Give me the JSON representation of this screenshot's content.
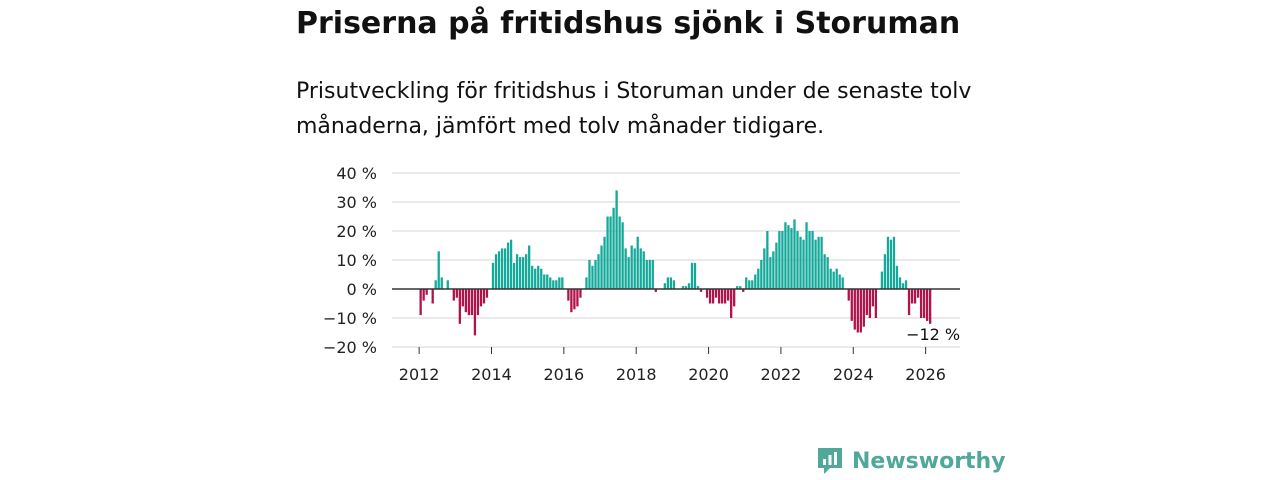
{
  "header": {
    "title": "Priserna på fritidshus sjönk i Storuman",
    "subtitle": "Prisutveckling för fritidshus i Storuman under de senaste tolv månaderna, jämfört med tolv månader tidigare."
  },
  "logo": {
    "text": "Newsworthy",
    "icon": "newsworthy-logo-icon"
  },
  "colors": {
    "positive": "#14a99a",
    "negative": "#b0124a",
    "grid": "#d4d4d4",
    "zero": "#333333"
  },
  "chart_data": {
    "type": "bar",
    "title": "Priserna på fritidshus sjönk i Storuman",
    "xlabel": "",
    "ylabel": "",
    "ylim": [
      -20,
      40
    ],
    "yticks": [
      40,
      30,
      20,
      10,
      0,
      -10,
      -20
    ],
    "ytick_labels": [
      "40 %",
      "30 %",
      "20 %",
      "10 %",
      "0 %",
      "−10 %",
      "−20 %"
    ],
    "xlim": [
      2011.25,
      2026.95
    ],
    "xticks": [
      2012,
      2014,
      2016,
      2018,
      2020,
      2022,
      2024,
      2026
    ],
    "xtick_labels": [
      "2012",
      "2014",
      "2016",
      "2018",
      "2020",
      "2022",
      "2024",
      "2026"
    ],
    "end_label": "−12 %",
    "end_label_month": "2026-02",
    "series": [
      {
        "name": "Prisutveckling",
        "values": [
          [
            "2012-01",
            -9
          ],
          [
            "2012-02",
            -4
          ],
          [
            "2012-03",
            -2
          ],
          [
            "2012-05",
            -5
          ],
          [
            "2012-06",
            3
          ],
          [
            "2012-07",
            13
          ],
          [
            "2012-08",
            4
          ],
          [
            "2012-10",
            3
          ],
          [
            "2012-12",
            -4
          ],
          [
            "2013-01",
            -3
          ],
          [
            "2013-02",
            -12
          ],
          [
            "2013-03",
            -6
          ],
          [
            "2013-04",
            -8
          ],
          [
            "2013-05",
            -9
          ],
          [
            "2013-06",
            -9
          ],
          [
            "2013-07",
            -16
          ],
          [
            "2013-08",
            -9
          ],
          [
            "2013-09",
            -6
          ],
          [
            "2013-10",
            -5
          ],
          [
            "2013-11",
            -3
          ],
          [
            "2014-01",
            9
          ],
          [
            "2014-02",
            12
          ],
          [
            "2014-03",
            13
          ],
          [
            "2014-04",
            14
          ],
          [
            "2014-05",
            14
          ],
          [
            "2014-06",
            16
          ],
          [
            "2014-07",
            17
          ],
          [
            "2014-08",
            9
          ],
          [
            "2014-09",
            12
          ],
          [
            "2014-10",
            11
          ],
          [
            "2014-11",
            11
          ],
          [
            "2014-12",
            12
          ],
          [
            "2015-01",
            15
          ],
          [
            "2015-02",
            8
          ],
          [
            "2015-03",
            7
          ],
          [
            "2015-04",
            8
          ],
          [
            "2015-05",
            7
          ],
          [
            "2015-06",
            5
          ],
          [
            "2015-07",
            5
          ],
          [
            "2015-08",
            4
          ],
          [
            "2015-09",
            3
          ],
          [
            "2015-10",
            3
          ],
          [
            "2015-11",
            4
          ],
          [
            "2015-12",
            4
          ],
          [
            "2016-02",
            -4
          ],
          [
            "2016-03",
            -8
          ],
          [
            "2016-04",
            -7
          ],
          [
            "2016-05",
            -6
          ],
          [
            "2016-06",
            -3
          ],
          [
            "2016-08",
            4
          ],
          [
            "2016-09",
            10
          ],
          [
            "2016-10",
            8
          ],
          [
            "2016-11",
            10
          ],
          [
            "2016-12",
            12
          ],
          [
            "2017-01",
            15
          ],
          [
            "2017-02",
            18
          ],
          [
            "2017-03",
            25
          ],
          [
            "2017-04",
            25
          ],
          [
            "2017-05",
            28
          ],
          [
            "2017-06",
            34
          ],
          [
            "2017-07",
            25
          ],
          [
            "2017-08",
            23
          ],
          [
            "2017-09",
            14
          ],
          [
            "2017-10",
            11
          ],
          [
            "2017-11",
            15
          ],
          [
            "2017-12",
            14
          ],
          [
            "2018-01",
            18
          ],
          [
            "2018-02",
            14
          ],
          [
            "2018-03",
            13
          ],
          [
            "2018-04",
            10
          ],
          [
            "2018-05",
            10
          ],
          [
            "2018-06",
            10
          ],
          [
            "2018-07",
            -1
          ],
          [
            "2018-10",
            2
          ],
          [
            "2018-11",
            4
          ],
          [
            "2018-12",
            4
          ],
          [
            "2019-01",
            3
          ],
          [
            "2019-04",
            1
          ],
          [
            "2019-05",
            1
          ],
          [
            "2019-06",
            2
          ],
          [
            "2019-07",
            9
          ],
          [
            "2019-08",
            9
          ],
          [
            "2019-09",
            1
          ],
          [
            "2019-10",
            -1
          ],
          [
            "2019-12",
            -3
          ],
          [
            "2020-01",
            -5
          ],
          [
            "2020-02",
            -5
          ],
          [
            "2020-03",
            -3
          ],
          [
            "2020-04",
            -5
          ],
          [
            "2020-05",
            -5
          ],
          [
            "2020-06",
            -5
          ],
          [
            "2020-07",
            -4
          ],
          [
            "2020-08",
            -10
          ],
          [
            "2020-09",
            -6
          ],
          [
            "2020-10",
            1
          ],
          [
            "2020-11",
            1
          ],
          [
            "2020-12",
            -1
          ],
          [
            "2021-01",
            4
          ],
          [
            "2021-02",
            3
          ],
          [
            "2021-03",
            3
          ],
          [
            "2021-04",
            5
          ],
          [
            "2021-05",
            7
          ],
          [
            "2021-06",
            10
          ],
          [
            "2021-07",
            14
          ],
          [
            "2021-08",
            20
          ],
          [
            "2021-09",
            11
          ],
          [
            "2021-10",
            13
          ],
          [
            "2021-11",
            16
          ],
          [
            "2021-12",
            20
          ],
          [
            "2022-01",
            20
          ],
          [
            "2022-02",
            23
          ],
          [
            "2022-03",
            22
          ],
          [
            "2022-04",
            21
          ],
          [
            "2022-05",
            24
          ],
          [
            "2022-06",
            20
          ],
          [
            "2022-07",
            18
          ],
          [
            "2022-08",
            17
          ],
          [
            "2022-09",
            23
          ],
          [
            "2022-10",
            20
          ],
          [
            "2022-11",
            20
          ],
          [
            "2022-12",
            17
          ],
          [
            "2023-01",
            18
          ],
          [
            "2023-02",
            18
          ],
          [
            "2023-03",
            12
          ],
          [
            "2023-04",
            11
          ],
          [
            "2023-05",
            7
          ],
          [
            "2023-06",
            6
          ],
          [
            "2023-07",
            7
          ],
          [
            "2023-08",
            5
          ],
          [
            "2023-09",
            4
          ],
          [
            "2023-11",
            -4
          ],
          [
            "2023-12",
            -11
          ],
          [
            "2024-01",
            -14
          ],
          [
            "2024-02",
            -15
          ],
          [
            "2024-03",
            -15
          ],
          [
            "2024-04",
            -13
          ],
          [
            "2024-05",
            -9
          ],
          [
            "2024-06",
            -10
          ],
          [
            "2024-07",
            -6
          ],
          [
            "2024-08",
            -10
          ],
          [
            "2024-10",
            6
          ],
          [
            "2024-11",
            12
          ],
          [
            "2024-12",
            18
          ],
          [
            "2025-01",
            17
          ],
          [
            "2025-02",
            18
          ],
          [
            "2025-03",
            8
          ],
          [
            "2025-04",
            4
          ],
          [
            "2025-05",
            2
          ],
          [
            "2025-06",
            3
          ],
          [
            "2025-07",
            -9
          ],
          [
            "2025-08",
            -5
          ],
          [
            "2025-09",
            -5
          ],
          [
            "2025-10",
            -3
          ],
          [
            "2025-11",
            -10
          ],
          [
            "2025-12",
            -10
          ],
          [
            "2026-01",
            -11
          ],
          [
            "2026-02",
            -12
          ]
        ]
      }
    ]
  }
}
